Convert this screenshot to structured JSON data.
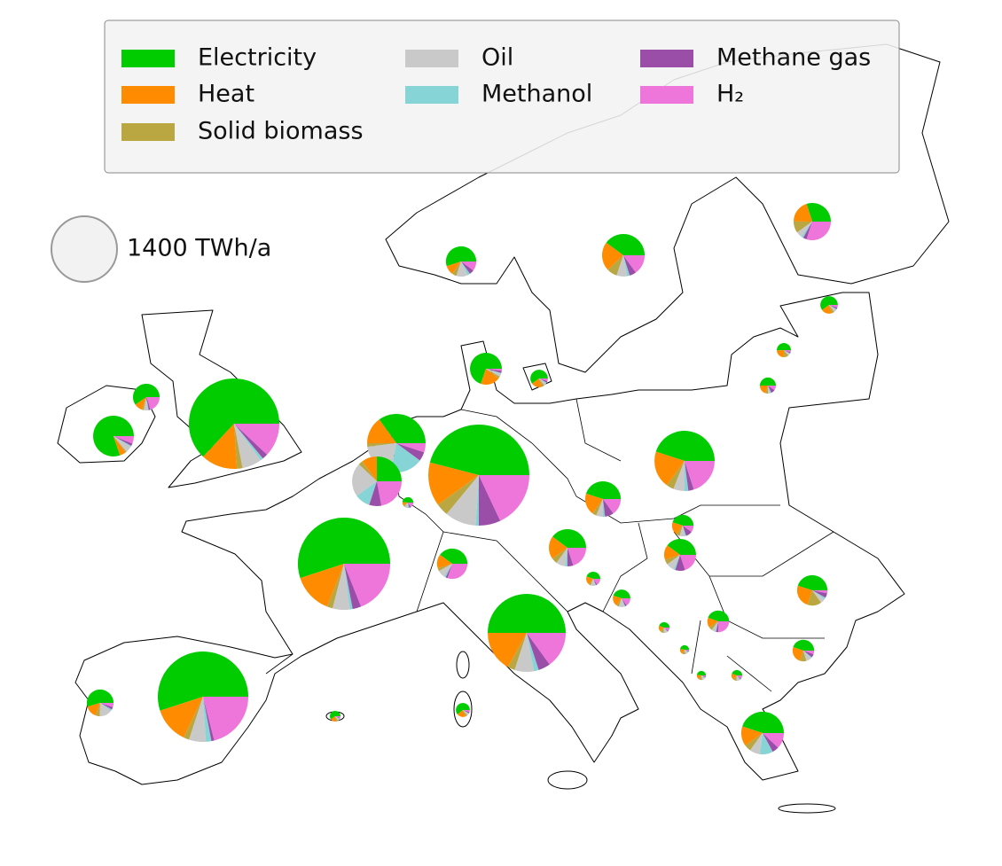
{
  "chart_data": {
    "type": "pie-map",
    "series": [
      {
        "name": "Electricity",
        "color": "#00cc00"
      },
      {
        "name": "Heat",
        "color": "#ff8c00"
      },
      {
        "name": "Solid biomass",
        "color": "#baa741"
      },
      {
        "name": "Oil",
        "color": "#c9c9c9"
      },
      {
        "name": "Methanol",
        "color": "#87d4d6"
      },
      {
        "name": "Methane gas",
        "color": "#9a4ea8"
      },
      {
        "name": "H₂",
        "color": "#ee76da"
      }
    ],
    "size_legend": {
      "value": 1400,
      "label": "1400 TWh/a"
    },
    "pies": [
      [
        1676,
        346,
        53,
        186,
        27,
        53,
        319
      ],
      [
        432,
        27,
        5,
        27,
        5,
        11,
        32
      ],
      [
        138,
        23,
        5,
        12,
        2,
        5,
        46
      ],
      [
        1524,
        388,
        55,
        166,
        28,
        83,
        526
      ],
      [
        1463,
        346,
        53,
        160,
        53,
        27,
        559
      ],
      [
        127,
        35,
        12,
        35,
        5,
        7,
        12
      ],
      [
        1527,
        465,
        133,
        332,
        33,
        232,
        598
      ],
      [
        389,
        167,
        22,
        222,
        200,
        56,
        56
      ],
      [
        200,
        80,
        24,
        176,
        80,
        64,
        176
      ],
      [
        19,
        4,
        2,
        4,
        2,
        2,
        6
      ],
      [
        231,
        66,
        7,
        10,
        3,
        7,
        7
      ],
      [
        60,
        20,
        5,
        5,
        2,
        3,
        5
      ],
      [
        165,
        30,
        15,
        36,
        9,
        15,
        30
      ],
      [
        236,
        130,
        47,
        47,
        12,
        30,
        89
      ],
      [
        135,
        90,
        45,
        23,
        9,
        14,
        135
      ],
      [
        60,
        20,
        5,
        5,
        2,
        3,
        5
      ],
      [
        33,
        16,
        7,
        3,
        1,
        2,
        3
      ],
      [
        42,
        17,
        4,
        4,
        2,
        7,
        8
      ],
      [
        531,
        236,
        47,
        71,
        24,
        35,
        236
      ],
      [
        185,
        82,
        16,
        25,
        8,
        33,
        62
      ],
      [
        180,
        90,
        23,
        36,
        9,
        23,
        90
      ],
      [
        120,
        45,
        9,
        24,
        6,
        6,
        90
      ],
      [
        68,
        30,
        8,
        12,
        3,
        15,
        15
      ],
      [
        132,
        50,
        17,
        26,
        7,
        33,
        66
      ],
      [
        29,
        13,
        3,
        7,
        1,
        2,
        10
      ],
      [
        45,
        20,
        5,
        10,
        2,
        3,
        15
      ],
      [
        990,
        337,
        59,
        158,
        40,
        99,
        297
      ],
      [
        135,
        75,
        45,
        15,
        6,
        15,
        9
      ],
      [
        17,
        7,
        4,
        4,
        1,
        1,
        4
      ],
      [
        68,
        23,
        8,
        8,
        3,
        5,
        38
      ],
      [
        13,
        5,
        3,
        3,
        1,
        1,
        1
      ],
      [
        68,
        38,
        15,
        12,
        3,
        8,
        8
      ],
      [
        13,
        5,
        3,
        3,
        1,
        1,
        1
      ],
      [
        17,
        7,
        4,
        4,
        1,
        1,
        4
      ],
      [
        266,
        89,
        30,
        47,
        59,
        30,
        71
      ],
      [
        39,
        13,
        3,
        3,
        1,
        2,
        3
      ],
      [
        22,
        7,
        2,
        2,
        1,
        1,
        2
      ]
    ]
  }
}
